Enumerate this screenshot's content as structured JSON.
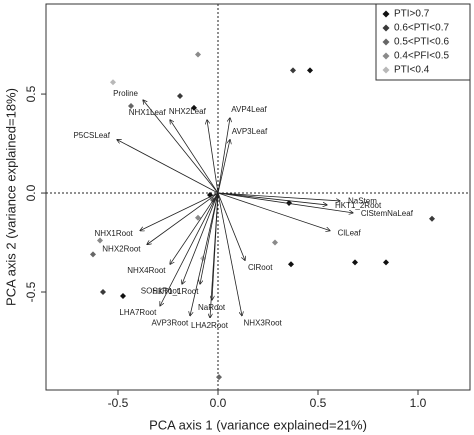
{
  "chart_data": {
    "type": "biplot",
    "x_label": "PCA axis 1 (variance explained=21%)",
    "y_label": "PCA axis 2 (variance explained=18%)",
    "xlim": [
      -0.86,
      1.26
    ],
    "ylim": [
      -0.995,
      0.955
    ],
    "xticks": [
      -0.5,
      {
        "value": 0,
        "label": "0.0"
      },
      0.5,
      {
        "value": 1,
        "label": "1.0"
      }
    ],
    "yticks": [
      -0.5,
      {
        "value": 0,
        "label": "0.0"
      },
      0.5
    ],
    "reference_lines": {
      "x": 0,
      "y": 0
    },
    "legend": "top-right",
    "series": [
      {
        "name": "PTI>0.7",
        "color": "#111111",
        "x": [
          0.46,
          -0.12,
          -0.04,
          0.355,
          0.365,
          0.685,
          0.84,
          -0.475
        ],
        "y": [
          0.62,
          0.43,
          -0.01,
          -0.05,
          -0.36,
          -0.35,
          -0.35,
          -0.52
        ]
      },
      {
        "name": "0.6<PTI<0.7",
        "color": "#3a3a3a",
        "x": [
          -0.19,
          0.375,
          1.07,
          -0.575
        ],
        "y": [
          0.49,
          0.62,
          -0.13,
          -0.5
        ]
      },
      {
        "name": "0.5<PTI<0.6",
        "color": "#666666",
        "x": [
          -0.435,
          -0.025,
          -0.625,
          0.005
        ],
        "y": [
          0.44,
          -0.035,
          -0.31,
          -0.93
        ]
      },
      {
        "name": "0.4<PFI<0.5",
        "color": "#8a8a8a",
        "x": [
          -0.1,
          -0.59,
          0.285,
          -0.1
        ],
        "y": [
          0.7,
          -0.24,
          -0.25,
          -0.125
        ]
      },
      {
        "name": "PTI<0.4",
        "color": "#b8b8b8",
        "x": [
          -0.525,
          -0.075
        ],
        "y": [
          0.56,
          -0.33
        ]
      }
    ],
    "arrows": [
      {
        "name": "Proline",
        "x": -0.375,
        "y": 0.47
      },
      {
        "name": "NHX1Leaf",
        "x": -0.24,
        "y": 0.37
      },
      {
        "name": "NHX2Leaf",
        "x": -0.055,
        "y": 0.37
      },
      {
        "name": "AVP4Leaf",
        "x": 0.06,
        "y": 0.38
      },
      {
        "name": "AVP3Leaf",
        "x": 0.06,
        "y": 0.27
      },
      {
        "name": "P5CSLeaf",
        "x": -0.505,
        "y": 0.27
      },
      {
        "name": "HKT1_2Root",
        "x": 0.545,
        "y": -0.06
      },
      {
        "name": "NaStem",
        "x": 0.61,
        "y": -0.04
      },
      {
        "name": "ClStemNaLeaf",
        "x": 0.675,
        "y": -0.1
      },
      {
        "name": "ClLeaf",
        "x": 0.56,
        "y": -0.19
      },
      {
        "name": "NHX1Root",
        "x": -0.39,
        "y": -0.19
      },
      {
        "name": "NHX2Root",
        "x": -0.355,
        "y": -0.26
      },
      {
        "name": "NHX4Root",
        "x": -0.24,
        "y": -0.36
      },
      {
        "name": "SOS1Root",
        "x": -0.18,
        "y": -0.46
      },
      {
        "name": "HKT1_1Root",
        "x": -0.09,
        "y": -0.46
      },
      {
        "name": "LHA7Root",
        "x": -0.29,
        "y": -0.57
      },
      {
        "name": "AVP3Root",
        "x": -0.14,
        "y": -0.62
      },
      {
        "name": "LHA2Root",
        "x": -0.04,
        "y": -0.63
      },
      {
        "name": "NaRoot",
        "x": -0.03,
        "y": -0.54
      },
      {
        "name": "NHX3Root",
        "x": 0.12,
        "y": -0.62
      },
      {
        "name": "ClRoot",
        "x": 0.135,
        "y": -0.34
      }
    ]
  }
}
